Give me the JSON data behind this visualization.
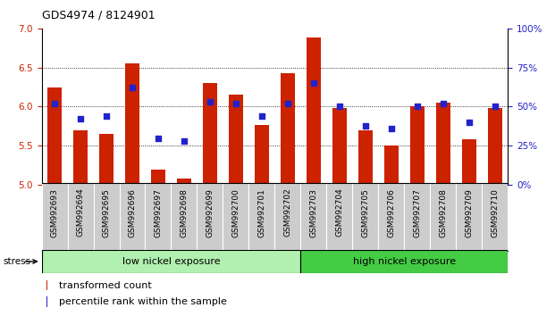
{
  "title": "GDS4974 / 8124901",
  "categories": [
    "GSM992693",
    "GSM992694",
    "GSM992695",
    "GSM992696",
    "GSM992697",
    "GSM992698",
    "GSM992699",
    "GSM992700",
    "GSM992701",
    "GSM992702",
    "GSM992703",
    "GSM992704",
    "GSM992705",
    "GSM992706",
    "GSM992707",
    "GSM992708",
    "GSM992709",
    "GSM992710"
  ],
  "bar_heights": [
    6.25,
    5.7,
    5.65,
    6.55,
    5.2,
    5.08,
    6.3,
    6.15,
    5.77,
    6.43,
    6.88,
    5.98,
    5.7,
    5.5,
    6.0,
    6.05,
    5.58,
    5.98
  ],
  "blue_pct": [
    52,
    42,
    44,
    62,
    30,
    28,
    53,
    52,
    44,
    52,
    65,
    50,
    38,
    36,
    50,
    52,
    40,
    50
  ],
  "bar_color": "#cc2200",
  "dot_color": "#2222cc",
  "ymin": 5.0,
  "ymax": 7.0,
  "yticks_left": [
    5.0,
    5.5,
    6.0,
    6.5,
    7.0
  ],
  "yticks_right": [
    0,
    25,
    50,
    75,
    100
  ],
  "ytick_labels_right": [
    "0%",
    "25%",
    "50%",
    "75%",
    "100%"
  ],
  "grid_levels": [
    5.5,
    6.0,
    6.5
  ],
  "n_low": 10,
  "n_high": 8,
  "group1_label": "low nickel exposure",
  "group2_label": "high nickel exposure",
  "group1_color": "#b0f0b0",
  "group2_color": "#44cc44",
  "stress_label": "stress",
  "legend_bar": "transformed count",
  "legend_dot": "percentile rank within the sample",
  "tick_bg_color": "#cccccc",
  "bar_width": 0.55,
  "title_fontsize": 9,
  "label_fontsize": 6.5,
  "axis_fontsize": 7.5
}
